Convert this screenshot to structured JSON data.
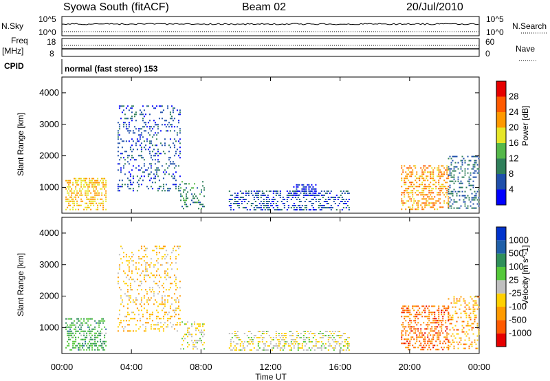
{
  "header": {
    "station": "Syowa South (fitACF)",
    "beam": "Beam 02",
    "date": "20/Jul/2010"
  },
  "strip_labels": {
    "nsky": "N.Sky",
    "nsky_tick_top": "10^5",
    "nsky_tick_bot": "10^0",
    "nsearch": "N.Search",
    "nsearch_tick_top": "10^5",
    "nsearch_tick_bot": "10^0",
    "freq_line1": "Freq",
    "freq_line2": "[MHz]",
    "freq_tick_top": "18",
    "freq_tick_bot": "8",
    "nave": "Nave",
    "nave_tick_top": "60",
    "nave_tick_bot": "0",
    "cpid": "CPID",
    "cpid_value": "normal (fast stereo) 153"
  },
  "colors": {
    "power_scale": [
      "#0000ff",
      "#1f4faa",
      "#2f7f5a",
      "#55b84a",
      "#e6e628",
      "#ff9900",
      "#ff5a00",
      "#e60000"
    ],
    "velocity_scale": [
      "#e60000",
      "#ff5a00",
      "#ff9a00",
      "#ffd000",
      "#bfbfbf",
      "#55c83a",
      "#2f8f5a",
      "#1f5fa8",
      "#0033cc"
    ]
  },
  "chart_data": [
    {
      "type": "heatmap",
      "title": "Power",
      "ylabel": "Slant Range [km]",
      "xlabel": "",
      "x_ticks": [
        "00:00",
        "04:00",
        "08:00",
        "12:00",
        "16:00",
        "20:00",
        "00:00"
      ],
      "y_ticks": [
        "1000",
        "2000",
        "3000",
        "4000"
      ],
      "ylim": [
        180,
        4500
      ],
      "xlim_hours": [
        0,
        24
      ],
      "colorbar_label": "Power [dB]",
      "colorbar_ticks": [
        "4",
        "8",
        "12",
        "16",
        "20",
        "24",
        "28"
      ],
      "colorbar_range": [
        0,
        32
      ],
      "regions": [
        {
          "t0": 0.2,
          "t1": 2.5,
          "r0": 300,
          "r1": 1300,
          "v": 20,
          "density": 0.5
        },
        {
          "t0": 3.2,
          "t1": 6.8,
          "r0": 900,
          "r1": 3600,
          "v": 6,
          "density": 0.22
        },
        {
          "t0": 6.8,
          "t1": 8.2,
          "r0": 300,
          "r1": 1200,
          "v": 10,
          "density": 0.25
        },
        {
          "t0": 9.6,
          "t1": 16.5,
          "r0": 300,
          "r1": 900,
          "v": 6,
          "density": 0.4
        },
        {
          "t0": 13.3,
          "t1": 14.6,
          "r0": 750,
          "r1": 1100,
          "v": 4,
          "density": 0.5
        },
        {
          "t0": 19.5,
          "t1": 22.2,
          "r0": 300,
          "r1": 1700,
          "v": 22,
          "density": 0.45
        },
        {
          "t0": 22.2,
          "t1": 24,
          "r0": 300,
          "r1": 2000,
          "v": 8,
          "density": 0.3
        }
      ]
    },
    {
      "type": "heatmap",
      "title": "Velocity",
      "ylabel": "Slant Range [km]",
      "xlabel": "Time UT",
      "x_ticks": [
        "00:00",
        "04:00",
        "08:00",
        "12:00",
        "16:00",
        "20:00",
        "00:00"
      ],
      "y_ticks": [
        "1000",
        "2000",
        "3000",
        "4000"
      ],
      "ylim": [
        180,
        4500
      ],
      "xlim_hours": [
        0,
        24
      ],
      "colorbar_label": "Velocity [m s^-1]",
      "colorbar_ticks": [
        "-1000",
        "-500",
        "-100",
        "-25",
        "25",
        "100",
        "500",
        "1000"
      ],
      "colorbar_range": [
        -1200,
        1200
      ],
      "regions": [
        {
          "t0": 0.2,
          "t1": 2.5,
          "r0": 300,
          "r1": 1300,
          "v": 400,
          "density": 0.45
        },
        {
          "t0": 3.2,
          "t1": 6.8,
          "r0": 900,
          "r1": 3600,
          "v": -300,
          "density": 0.22
        },
        {
          "t0": 6.8,
          "t1": 8.2,
          "r0": 300,
          "r1": 1200,
          "v": -80,
          "density": 0.25
        },
        {
          "t0": 9.6,
          "t1": 16.5,
          "r0": 300,
          "r1": 900,
          "v": -60,
          "density": 0.35
        },
        {
          "t0": 19.5,
          "t1": 22.2,
          "r0": 300,
          "r1": 1700,
          "v": -700,
          "density": 0.45
        },
        {
          "t0": 22.2,
          "t1": 24,
          "r0": 300,
          "r1": 2000,
          "v": -500,
          "density": 0.3
        }
      ]
    }
  ]
}
